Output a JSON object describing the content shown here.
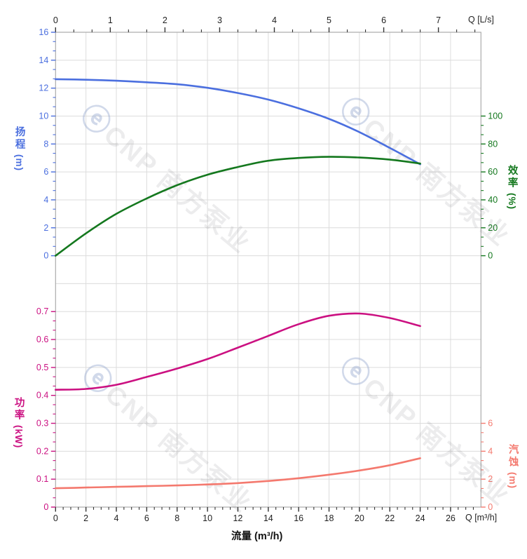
{
  "watermark": {
    "logo_glyph": "ⓔ",
    "text": "CNP 南方泵业"
  },
  "chart_data": {
    "type": "line",
    "title": "",
    "x": [
      0,
      2,
      4,
      6,
      8,
      10,
      12,
      14,
      16,
      18,
      20,
      22,
      24
    ],
    "x_unit": "m³/h",
    "series": [
      {
        "name": "扬程",
        "axis": "head",
        "color": "#4b6fdf",
        "values": [
          12.64,
          12.6,
          12.53,
          12.42,
          12.28,
          12.02,
          11.65,
          11.18,
          10.55,
          9.8,
          8.85,
          7.72,
          6.55
        ]
      },
      {
        "name": "效率",
        "axis": "efficiency",
        "color": "#14781e",
        "values": [
          0,
          16,
          30,
          41,
          50.5,
          58,
          63.5,
          68,
          70,
          70.8,
          70.3,
          68.8,
          66
        ]
      },
      {
        "name": "功率",
        "axis": "power",
        "color": "#cb1081",
        "values": [
          0.42,
          0.423,
          0.438,
          0.466,
          0.496,
          0.53,
          0.571,
          0.613,
          0.655,
          0.685,
          0.693,
          0.677,
          0.648
        ]
      },
      {
        "name": "汽蚀",
        "axis": "npsh",
        "color": "#f4796e",
        "values": [
          1.35,
          1.4,
          1.45,
          1.5,
          1.55,
          1.62,
          1.72,
          1.87,
          2.07,
          2.32,
          2.62,
          3.0,
          3.5
        ]
      }
    ],
    "axes": {
      "bottom": {
        "label": "流量 (m³/h)",
        "corner_label": "Q [m³/h]",
        "range": [
          0,
          28
        ],
        "major_ticks": [
          0,
          2,
          4,
          6,
          8,
          10,
          12,
          14,
          16,
          18,
          20,
          22,
          24,
          26
        ],
        "minor_step": 0.5,
        "color": "#1f1f1f"
      },
      "top": {
        "corner_label": "Q [L/s]",
        "range": [
          0,
          7.78
        ],
        "major_ticks": [
          0,
          1,
          2,
          3,
          4,
          5,
          6,
          7
        ],
        "minors_per_major": 2,
        "color": "#1f1f1f"
      },
      "head": {
        "title": "扬程",
        "unit": "(m)",
        "range": [
          0,
          16
        ],
        "major_ticks": [
          0,
          2,
          4,
          6,
          8,
          10,
          12,
          14,
          16
        ],
        "minors_per_major": 2,
        "color": "#4b6fdf"
      },
      "efficiency": {
        "title": "效率",
        "unit": "(%)",
        "range": [
          0,
          100
        ],
        "major_ticks": [
          0,
          20,
          40,
          60,
          80,
          100
        ],
        "minors_per_major": 2,
        "color": "#14781e"
      },
      "power": {
        "title": "功率",
        "unit": "(kW)",
        "range": [
          0,
          0.7
        ],
        "major_ticks": [
          0,
          0.1,
          0.2,
          0.3,
          0.4,
          0.5,
          0.6,
          0.7
        ],
        "minors_per_major": 2,
        "color": "#cb1081"
      },
      "npsh": {
        "title": "汽蚀",
        "unit": "(m)",
        "range": [
          0,
          6
        ],
        "major_ticks": [
          0,
          2,
          4,
          6
        ],
        "minors_per_major": 2,
        "color": "#f4796e"
      }
    }
  }
}
